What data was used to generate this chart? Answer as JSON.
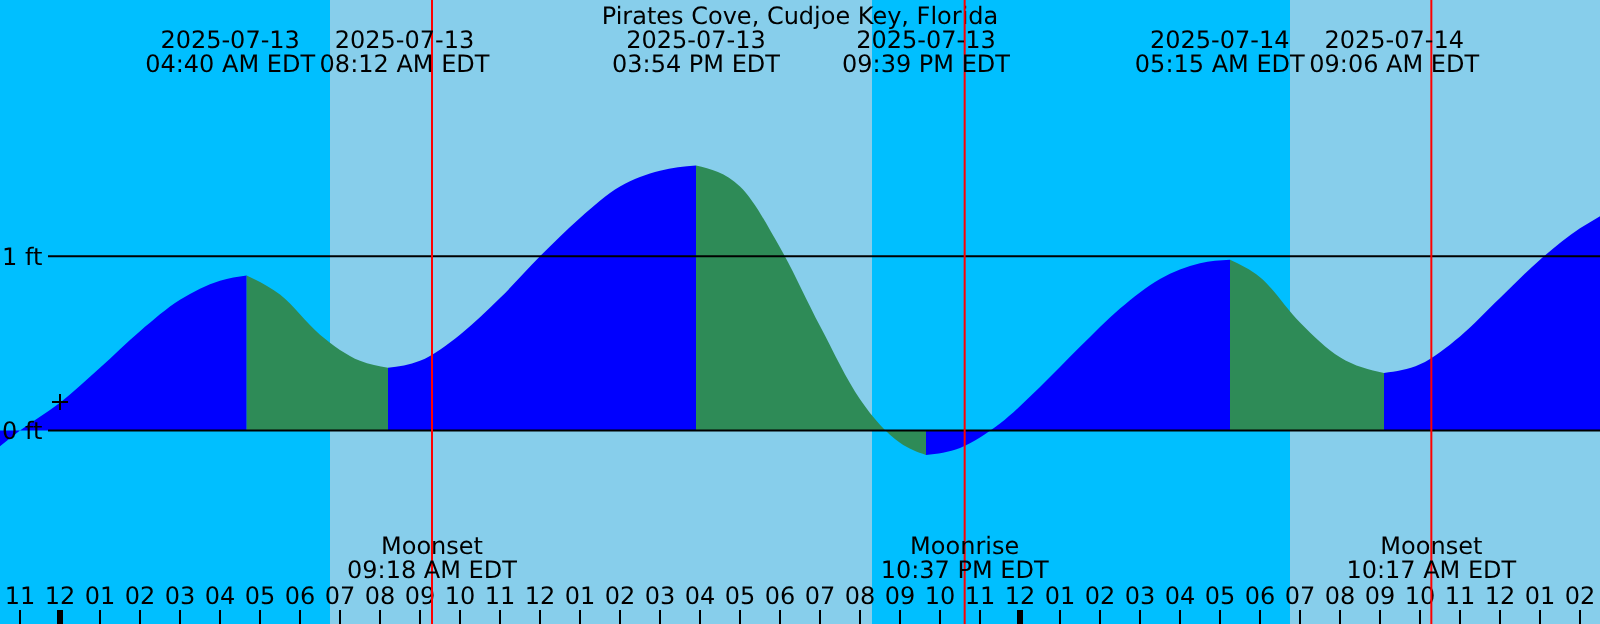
{
  "chart_data": {
    "type": "area",
    "title": "Pirates Cove, Cudjoe Key, Florida",
    "series": [
      {
        "color": "#0000ff",
        "x": [
          "2025-07-12T22:30",
          "2025-07-12T23:00",
          "2025-07-13T00:00",
          "2025-07-13T01:00",
          "2025-07-13T02:00",
          "2025-07-13T03:00",
          "2025-07-13T04:00",
          "2025-07-13T04:40"
        ],
        "values": [
          -0.09,
          0,
          0.16,
          0.36,
          0.57,
          0.75,
          0.86,
          0.89
        ]
      },
      {
        "color": "#2e8b57",
        "x": [
          "2025-07-13T04:40",
          "2025-07-13T05:30",
          "2025-07-13T06:30",
          "2025-07-13T07:30",
          "2025-07-13T08:12"
        ],
        "values": [
          0.89,
          0.78,
          0.55,
          0.4,
          0.36
        ]
      },
      {
        "color": "#0000ff",
        "x": [
          "2025-07-13T08:12",
          "2025-07-13T09:00",
          "2025-07-13T10:00",
          "2025-07-13T11:00",
          "2025-07-13T12:00",
          "2025-07-13T13:00",
          "2025-07-13T14:00",
          "2025-07-13T15:00",
          "2025-07-13T15:54"
        ],
        "values": [
          0.36,
          0.4,
          0.55,
          0.76,
          1.0,
          1.22,
          1.4,
          1.49,
          1.52
        ]
      },
      {
        "color": "#2e8b57",
        "x": [
          "2025-07-13T15:54",
          "2025-07-13T17:00",
          "2025-07-13T18:00",
          "2025-07-13T19:00",
          "2025-07-13T20:00",
          "2025-07-13T21:00",
          "2025-07-13T21:39"
        ],
        "values": [
          1.52,
          1.4,
          1.05,
          0.6,
          0.18,
          -0.07,
          -0.14
        ]
      },
      {
        "color": "#0000ff",
        "x": [
          "2025-07-13T21:39",
          "2025-07-13T22:30",
          "2025-07-13T23:30",
          "2025-07-14T00:30",
          "2025-07-14T01:30",
          "2025-07-14T02:30",
          "2025-07-14T03:30",
          "2025-07-14T04:30",
          "2025-07-14T05:15"
        ],
        "values": [
          -0.14,
          -0.1,
          0.04,
          0.25,
          0.48,
          0.7,
          0.87,
          0.96,
          0.98
        ]
      },
      {
        "color": "#2e8b57",
        "x": [
          "2025-07-14T05:15",
          "2025-07-14T06:00",
          "2025-07-14T07:00",
          "2025-07-14T08:00",
          "2025-07-14T09:06"
        ],
        "values": [
          0.98,
          0.88,
          0.62,
          0.42,
          0.33
        ]
      },
      {
        "color": "#0000ff",
        "x": [
          "2025-07-14T09:06",
          "2025-07-14T10:00",
          "2025-07-14T11:00",
          "2025-07-14T12:00",
          "2025-07-14T13:00",
          "2025-07-14T14:00",
          "2025-07-14T14:30"
        ],
        "values": [
          0.33,
          0.38,
          0.54,
          0.76,
          0.98,
          1.16,
          1.23
        ]
      }
    ],
    "xlim": [
      "2025-07-12T22:30",
      "2025-07-14T14:30"
    ],
    "xticks": [
      {
        "value": "2025-07-12T23:00",
        "label": "11"
      },
      {
        "value": "2025-07-13T00:00",
        "label": "12"
      },
      {
        "value": "2025-07-13T01:00",
        "label": "01"
      },
      {
        "value": "2025-07-13T02:00",
        "label": "02"
      },
      {
        "value": "2025-07-13T03:00",
        "label": "03"
      },
      {
        "value": "2025-07-13T04:00",
        "label": "04"
      },
      {
        "value": "2025-07-13T05:00",
        "label": "05"
      },
      {
        "value": "2025-07-13T06:00",
        "label": "06"
      },
      {
        "value": "2025-07-13T07:00",
        "label": "07"
      },
      {
        "value": "2025-07-13T08:00",
        "label": "08"
      },
      {
        "value": "2025-07-13T09:00",
        "label": "09"
      },
      {
        "value": "2025-07-13T10:00",
        "label": "10"
      },
      {
        "value": "2025-07-13T11:00",
        "label": "11"
      },
      {
        "value": "2025-07-13T12:00",
        "label": "12"
      },
      {
        "value": "2025-07-13T13:00",
        "label": "01"
      },
      {
        "value": "2025-07-13T14:00",
        "label": "02"
      },
      {
        "value": "2025-07-13T15:00",
        "label": "03"
      },
      {
        "value": "2025-07-13T16:00",
        "label": "04"
      },
      {
        "value": "2025-07-13T17:00",
        "label": "05"
      },
      {
        "value": "2025-07-13T18:00",
        "label": "06"
      },
      {
        "value": "2025-07-13T19:00",
        "label": "07"
      },
      {
        "value": "2025-07-13T20:00",
        "label": "08"
      },
      {
        "value": "2025-07-13T21:00",
        "label": "09"
      },
      {
        "value": "2025-07-13T22:00",
        "label": "10"
      },
      {
        "value": "2025-07-13T23:00",
        "label": "11"
      },
      {
        "value": "2025-07-14T00:00",
        "label": "12"
      },
      {
        "value": "2025-07-14T01:00",
        "label": "01"
      },
      {
        "value": "2025-07-14T02:00",
        "label": "02"
      },
      {
        "value": "2025-07-14T03:00",
        "label": "03"
      },
      {
        "value": "2025-07-14T04:00",
        "label": "04"
      },
      {
        "value": "2025-07-14T05:00",
        "label": "05"
      },
      {
        "value": "2025-07-14T06:00",
        "label": "06"
      },
      {
        "value": "2025-07-14T07:00",
        "label": "07"
      },
      {
        "value": "2025-07-14T08:00",
        "label": "08"
      },
      {
        "value": "2025-07-14T09:00",
        "label": "09"
      },
      {
        "value": "2025-07-14T10:00",
        "label": "10"
      },
      {
        "value": "2025-07-14T11:00",
        "label": "11"
      },
      {
        "value": "2025-07-14T12:00",
        "label": "12"
      },
      {
        "value": "2025-07-14T13:00",
        "label": "01"
      },
      {
        "value": "2025-07-14T14:00",
        "label": "02"
      }
    ],
    "ylim": [
      -1.11,
      2.47
    ],
    "yticks": [
      {
        "value": 0,
        "label": "0 ft"
      },
      {
        "value": 1,
        "label": "1 ft"
      }
    ],
    "grid": "y",
    "bands": [
      {
        "axis": "x",
        "from": "2025-07-13T06:45",
        "to": "2025-07-13T20:18",
        "color": "#87ceeb"
      },
      {
        "axis": "x",
        "from": "2025-07-14T06:45",
        "to": "2025-07-14T14:30",
        "color": "#87ceeb"
      }
    ],
    "annotations": [
      "2025-07-13\n04:40 AM EDT",
      "2025-07-13\n08:12 AM EDT",
      "2025-07-13\n03:54 PM EDT",
      "2025-07-13\n09:39 PM EDT",
      "2025-07-14\n05:15 AM EDT",
      "2025-07-14\n09:06 AM EDT"
    ],
    "ref_lines": [
      {
        "axis": "x",
        "value": "2025-07-13T09:18",
        "label": "Moonset\n09:18 AM EDT",
        "color": "#ff0000"
      },
      {
        "axis": "x",
        "value": "2025-07-13T22:37",
        "label": "Moonrise\n10:37 PM EDT",
        "color": "#ff0000"
      },
      {
        "axis": "x",
        "value": "2025-07-14T10:17",
        "label": "Moonset\n10:17 AM EDT",
        "color": "#ff0000"
      }
    ]
  }
}
